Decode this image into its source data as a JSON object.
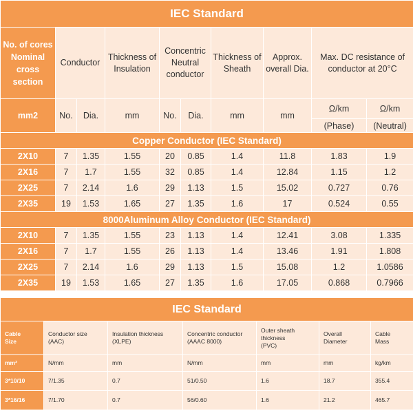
{
  "table1": {
    "title": "IEC Standard",
    "headers": {
      "cores": [
        "No. of cores",
        "Nominal",
        "cross section"
      ],
      "conductor": "Conductor",
      "insulation": [
        "Thickness of",
        "Insulation"
      ],
      "neutral": [
        "Concentric",
        "Neutral",
        "conductor"
      ],
      "sheath": [
        "Thickness of",
        "Sheath"
      ],
      "overall": [
        "Approx.",
        "overall Dia."
      ],
      "resistance": [
        "Max. DC resistance of",
        "conductor at 20°C"
      ]
    },
    "units": {
      "size": "mm2",
      "cond_no": "No.",
      "cond_dia": "Dia.",
      "insulation": "mm",
      "neu_no": "No.",
      "neu_dia": "Dia.",
      "sheath": "mm",
      "overall": "mm",
      "phase_unit": "Ω/km",
      "phase_label": "(Phase)",
      "neutral_unit": "Ω/km",
      "neutral_label": "(Neutral)"
    },
    "sections": [
      {
        "title": "Copper Conductor (IEC Standard)",
        "rows": [
          [
            "2X10",
            "7",
            "1.35",
            "1.55",
            "20",
            "0.85",
            "1.4",
            "11.8",
            "1.83",
            "1.9"
          ],
          [
            "2X16",
            "7",
            "1.7",
            "1.55",
            "32",
            "0.85",
            "1.4",
            "12.84",
            "1.15",
            "1.2"
          ],
          [
            "2X25",
            "7",
            "2.14",
            "1.6",
            "29",
            "1.13",
            "1.5",
            "15.02",
            "0.727",
            "0.76"
          ],
          [
            "2X35",
            "19",
            "1.53",
            "1.65",
            "27",
            "1.35",
            "1.6",
            "17",
            "0.524",
            "0.55"
          ]
        ]
      },
      {
        "title": "8000Aluminum Alloy Conductor (IEC Standard)",
        "rows": [
          [
            "2X10",
            "7",
            "1.35",
            "1.55",
            "23",
            "1.13",
            "1.4",
            "12.41",
            "3.08",
            "1.335"
          ],
          [
            "2X16",
            "7",
            "1.7",
            "1.55",
            "26",
            "1.13",
            "1.4",
            "13.46",
            "1.91",
            "1.808"
          ],
          [
            "2X25",
            "7",
            "2.14",
            "1.6",
            "29",
            "1.13",
            "1.5",
            "15.08",
            "1.2",
            "1.0586"
          ],
          [
            "2X35",
            "19",
            "1.53",
            "1.65",
            "27",
            "1.35",
            "1.6",
            "17.05",
            "0.868",
            "0.7966"
          ]
        ]
      }
    ]
  },
  "table2": {
    "title": "IEC Standard",
    "headers": [
      [
        "Cable",
        "Size"
      ],
      [
        "Conductor size",
        "(AAC)"
      ],
      [
        "Insulation thickness",
        "(XLPE)"
      ],
      [
        "Concentric conductor",
        "(AAAC 8000)"
      ],
      [
        "Outer sheath",
        "thickness",
        "(PVC)"
      ],
      [
        "Overall",
        "Diameter"
      ],
      [
        "Cable",
        "Mass"
      ]
    ],
    "rows": [
      [
        "mm²",
        "N/mm",
        "mm",
        "N/mm",
        "mm",
        "mm",
        "kg/km"
      ],
      [
        "3*10/10",
        "7/1.35",
        "0.7",
        "51/0.50",
        "1.6",
        "18.7",
        "355.4"
      ],
      [
        "3*16/16",
        "7/1.70",
        "0.7",
        "56/0.60",
        "1.6",
        "21.2",
        "465.7"
      ]
    ]
  },
  "colors": {
    "accent": "#f49a4f",
    "light": "#fde9da",
    "text": "#333333"
  }
}
